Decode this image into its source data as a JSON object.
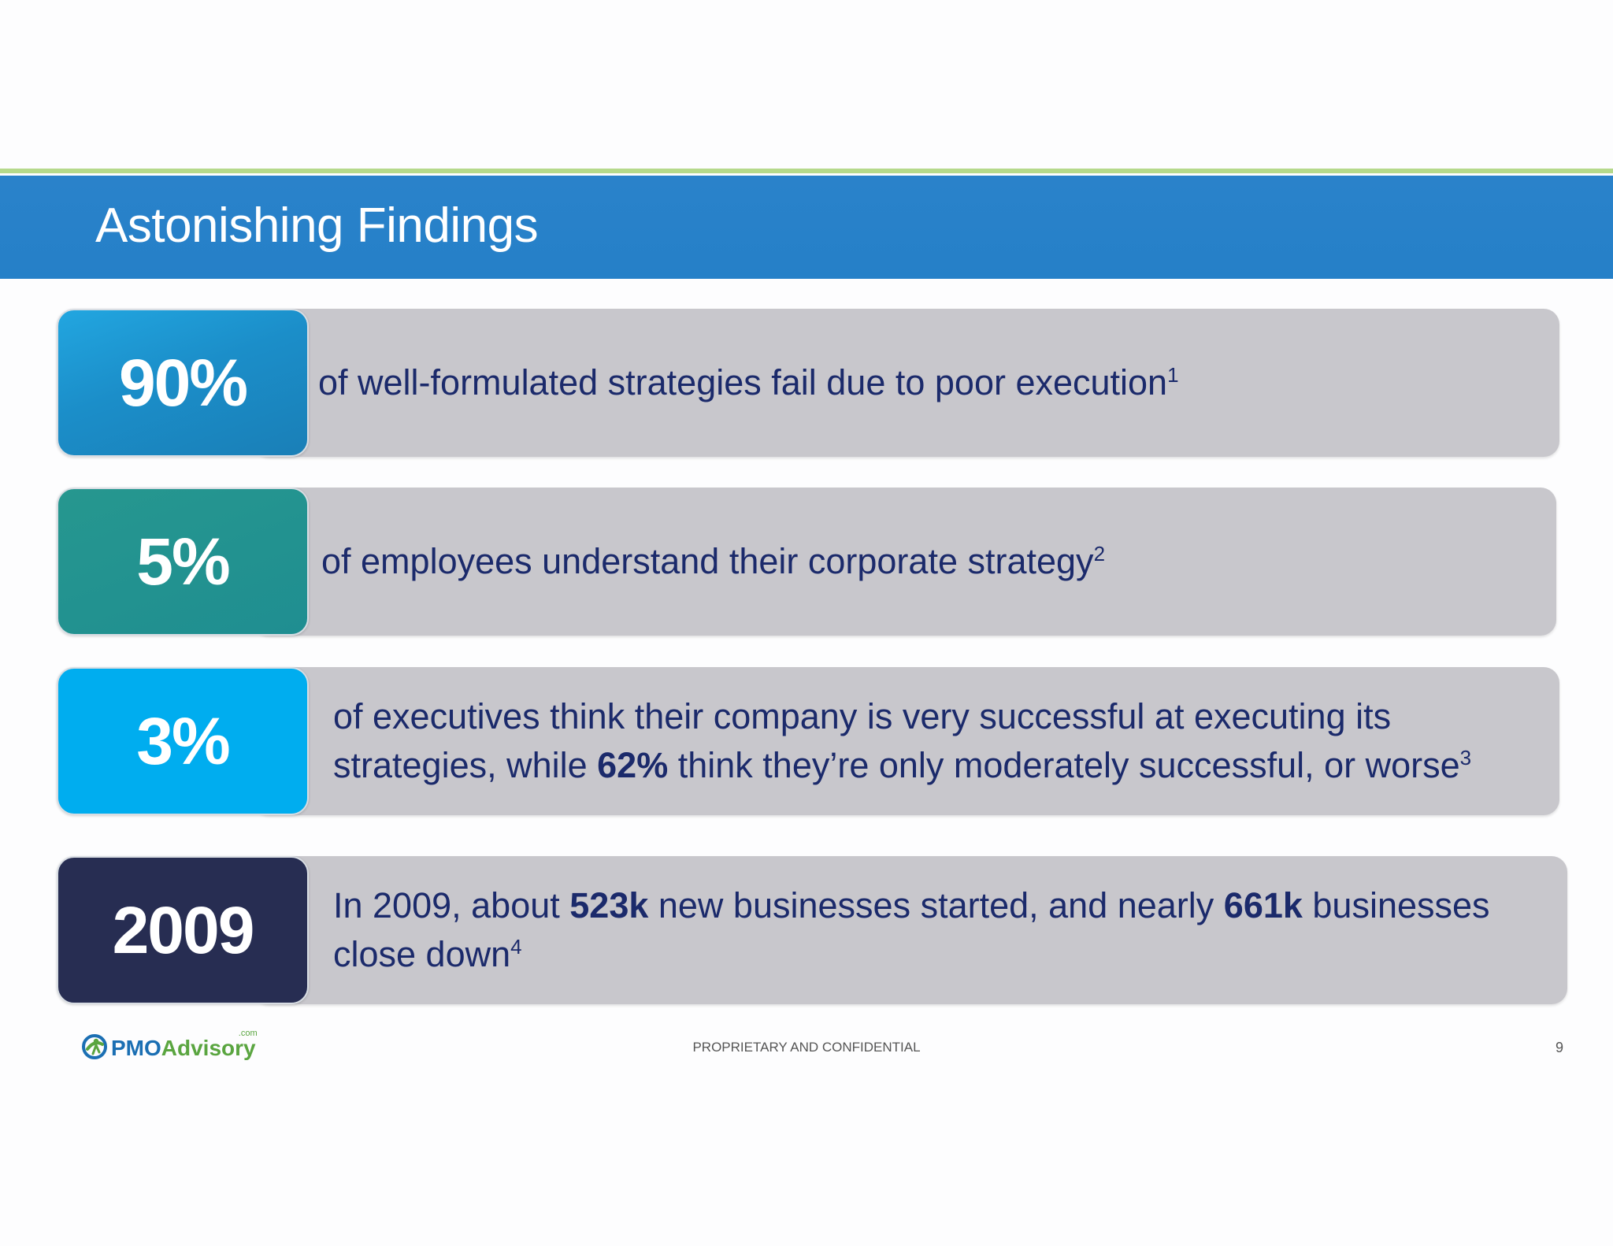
{
  "slide": {
    "title": "Astonishing Findings",
    "footer_text": "PROPRIETARY AND CONFIDENTIAL",
    "page_number": "9",
    "logo": {
      "part1": "PMO",
      "part2": "Advisory",
      "suffix": ".com",
      "icon": "globe-person-icon"
    }
  },
  "findings": [
    {
      "stat": "90%",
      "color": "#1b8ec9",
      "text_before": "of well-formulated strategies fail due to poor execution",
      "footnote": "1"
    },
    {
      "stat": "5%",
      "color": "#1f8e91",
      "text_before": "of employees understand their corporate strategy",
      "footnote": "2"
    },
    {
      "stat": "3%",
      "color": "#00adef",
      "line1": "of executives think their company is very successful at executing its",
      "line2_a": "strategies, while ",
      "line2_bold": "62%",
      "line2_b": " think they’re only moderately successful, or worse",
      "footnote": "3"
    },
    {
      "stat": "2009",
      "color": "#272d52",
      "line1_a": "In 2009, about ",
      "line1_bold1": "523k",
      "line1_b": " new businesses started, and nearly ",
      "line1_bold2": "661k",
      "line1_c": " businesses",
      "line2": "close down",
      "footnote": "4"
    }
  ]
}
